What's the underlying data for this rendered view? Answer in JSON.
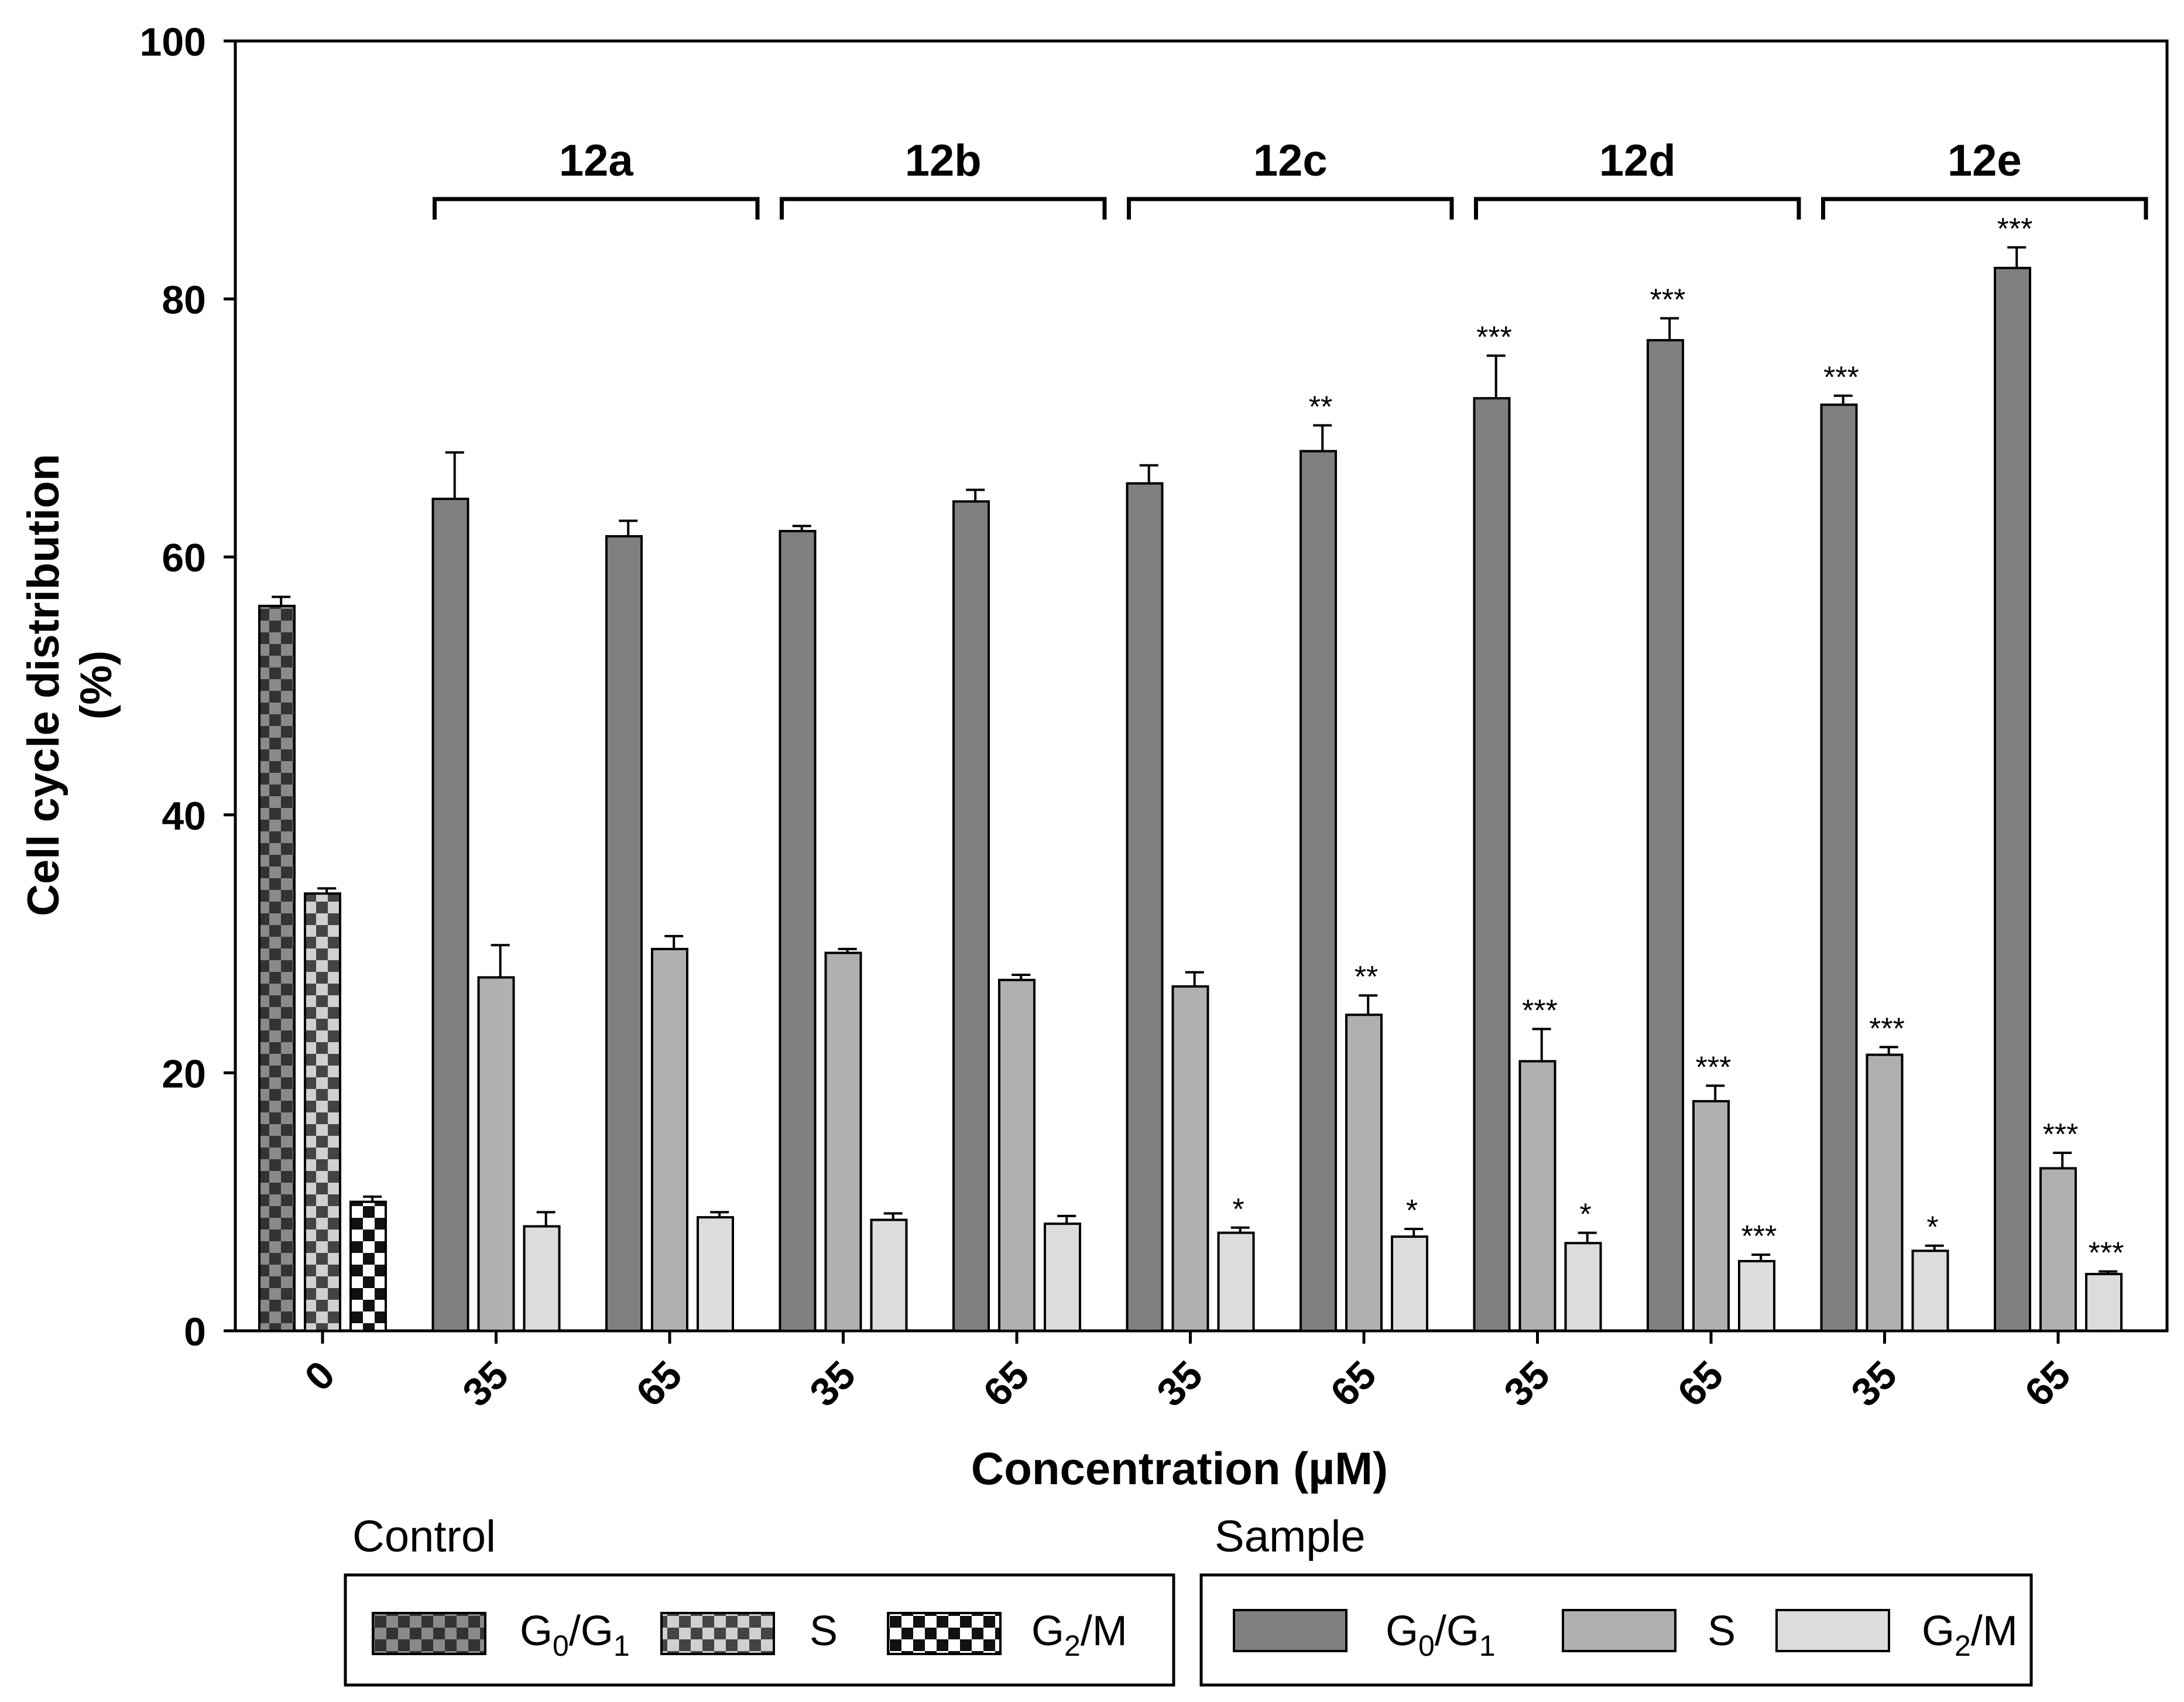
{
  "chart_data": {
    "type": "bar",
    "ylabel_line1": "Cell cycle distribution",
    "ylabel_line2": "(%)",
    "xlabel": "Concentration (µM)",
    "ylim": [
      0,
      100
    ],
    "yticks": [
      0,
      20,
      40,
      60,
      80,
      100
    ],
    "ytick_labels": [
      "0",
      "20",
      "40",
      "60",
      "80",
      "100"
    ],
    "groups": [
      {
        "label": "",
        "categories": [
          {
            "label": "0",
            "kind": "control",
            "values": [
              56.2,
              33.9,
              10.0
            ],
            "errors": [
              0.7,
              0.4,
              0.4
            ],
            "sig": [
              "",
              "",
              ""
            ]
          }
        ]
      },
      {
        "label": "12a",
        "categories": [
          {
            "label": "35",
            "kind": "sample",
            "values": [
              64.5,
              27.4,
              8.1
            ],
            "errors": [
              3.6,
              2.5,
              1.1
            ],
            "sig": [
              "",
              "",
              ""
            ]
          },
          {
            "label": "65",
            "kind": "sample",
            "values": [
              61.6,
              29.6,
              8.8
            ],
            "errors": [
              1.2,
              1.0,
              0.4
            ],
            "sig": [
              "",
              "",
              ""
            ]
          }
        ]
      },
      {
        "label": "12b",
        "categories": [
          {
            "label": "35",
            "kind": "sample",
            "values": [
              62.0,
              29.3,
              8.6
            ],
            "errors": [
              0.4,
              0.3,
              0.5
            ],
            "sig": [
              "",
              "",
              ""
            ]
          },
          {
            "label": "65",
            "kind": "sample",
            "values": [
              64.3,
              27.2,
              8.3
            ],
            "errors": [
              0.9,
              0.4,
              0.6
            ],
            "sig": [
              "",
              "",
              ""
            ]
          }
        ]
      },
      {
        "label": "12c",
        "categories": [
          {
            "label": "35",
            "kind": "sample",
            "values": [
              65.7,
              26.7,
              7.6
            ],
            "errors": [
              1.4,
              1.1,
              0.4
            ],
            "sig": [
              "",
              "",
              "*"
            ]
          },
          {
            "label": "65",
            "kind": "sample",
            "values": [
              68.2,
              24.5,
              7.3
            ],
            "errors": [
              2.0,
              1.5,
              0.6
            ],
            "sig": [
              "**",
              "**",
              "*"
            ]
          }
        ]
      },
      {
        "label": "12d",
        "categories": [
          {
            "label": "35",
            "kind": "sample",
            "values": [
              72.3,
              20.9,
              6.8
            ],
            "errors": [
              3.3,
              2.5,
              0.8
            ],
            "sig": [
              "***",
              "***",
              "*"
            ]
          },
          {
            "label": "65",
            "kind": "sample",
            "values": [
              76.8,
              17.8,
              5.4
            ],
            "errors": [
              1.7,
              1.2,
              0.5
            ],
            "sig": [
              "***",
              "***",
              "***"
            ]
          }
        ]
      },
      {
        "label": "12e",
        "categories": [
          {
            "label": "35",
            "kind": "sample",
            "values": [
              71.8,
              21.4,
              6.2
            ],
            "errors": [
              0.7,
              0.6,
              0.4
            ],
            "sig": [
              "***",
              "***",
              "*"
            ]
          },
          {
            "label": "65",
            "kind": "sample",
            "values": [
              82.4,
              12.6,
              4.4
            ],
            "errors": [
              1.6,
              1.2,
              0.2
            ],
            "sig": [
              "***",
              "***",
              "***"
            ]
          }
        ]
      }
    ],
    "series_names": [
      "G0/G1",
      "S",
      "G2/M"
    ],
    "colors": {
      "sample": [
        "#808080",
        "#b0b0b0",
        "#dcdcdc"
      ],
      "control_dark": [
        "#333333",
        "#444444",
        "#111111"
      ],
      "control_light": [
        "#8a8a8a",
        "#d0d0d0",
        "#ffffff"
      ]
    },
    "legend": {
      "control_title": "Control",
      "sample_title": "Sample",
      "labels": [
        {
          "main": "G",
          "sub": "0",
          "mid": "/G",
          "sub2": "1"
        },
        {
          "main": "S",
          "sub": "",
          "mid": "",
          "sub2": ""
        },
        {
          "main": "G",
          "sub": "2",
          "mid": "/M",
          "sub2": ""
        }
      ]
    }
  }
}
